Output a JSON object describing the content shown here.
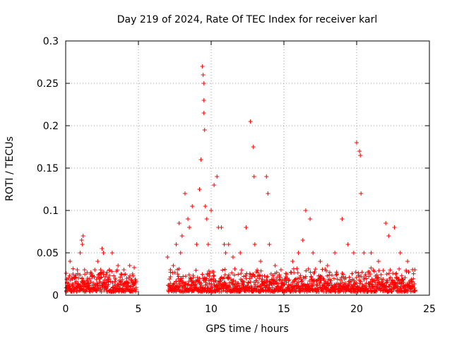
{
  "chart_data": {
    "type": "scatter",
    "title": "Day 219 of 2024, Rate Of TEC Index for receiver karl",
    "xlabel": "GPS time / hours",
    "ylabel": "ROTI / TECUs",
    "xlim": [
      0,
      25
    ],
    "ylim": [
      0,
      0.3
    ],
    "x_ticks": [
      0,
      5,
      10,
      15,
      20,
      25
    ],
    "y_ticks": [
      0,
      0.05,
      0.1,
      0.15,
      0.2,
      0.25,
      0.3
    ],
    "x_tick_labels": [
      "0",
      "5",
      "10",
      "15",
      "20",
      "25"
    ],
    "y_tick_labels": [
      "0",
      "0.05",
      "0.1",
      "0.15",
      "0.2",
      "0.25",
      "0.3"
    ],
    "grid": true,
    "marker": "plus",
    "color": "#ff0000",
    "data_gap_hours": [
      4.85,
      7.0
    ],
    "series": [
      {
        "name": "ROTI",
        "x": [
          0.1,
          0.2,
          0.3,
          0.4,
          0.5,
          0.6,
          0.8,
          1.0,
          1.1,
          1.15,
          1.2,
          1.3,
          1.5,
          1.7,
          2.0,
          2.2,
          2.4,
          2.5,
          2.6,
          2.8,
          3.0,
          3.2,
          3.4,
          3.6,
          3.8,
          4.0,
          4.2,
          4.4,
          4.6,
          4.8,
          7.0,
          7.2,
          7.4,
          7.6,
          7.8,
          7.9,
          8.0,
          8.2,
          8.4,
          8.5,
          8.7,
          9.0,
          9.2,
          9.3,
          9.4,
          9.45,
          9.5,
          9.5,
          9.5,
          9.55,
          9.6,
          9.7,
          9.8,
          10.0,
          10.2,
          10.4,
          10.5,
          10.7,
          10.9,
          11.0,
          11.2,
          11.5,
          12.0,
          12.4,
          12.7,
          12.9,
          12.95,
          13.0,
          13.4,
          13.8,
          13.9,
          14.0,
          14.4,
          14.8,
          15.2,
          15.6,
          16.0,
          16.3,
          16.5,
          16.8,
          17.0,
          17.5,
          18.0,
          18.5,
          19.0,
          19.4,
          19.8,
          20.0,
          20.2,
          20.25,
          20.3,
          20.5,
          21.0,
          21.5,
          22.0,
          22.2,
          22.6,
          23.0,
          23.5,
          24.0
        ],
        "y": [
          0.015,
          0.02,
          0.04,
          0.02,
          0.025,
          0.02,
          0.03,
          0.05,
          0.065,
          0.06,
          0.07,
          0.03,
          0.02,
          0.025,
          0.03,
          0.04,
          0.03,
          0.055,
          0.05,
          0.025,
          0.03,
          0.05,
          0.02,
          0.035,
          0.025,
          0.03,
          0.02,
          0.035,
          0.025,
          0.015,
          0.045,
          0.03,
          0.035,
          0.06,
          0.085,
          0.05,
          0.07,
          0.12,
          0.09,
          0.08,
          0.105,
          0.06,
          0.125,
          0.16,
          0.27,
          0.26,
          0.25,
          0.23,
          0.215,
          0.195,
          0.105,
          0.09,
          0.06,
          0.1,
          0.13,
          0.14,
          0.08,
          0.08,
          0.06,
          0.05,
          0.06,
          0.045,
          0.05,
          0.08,
          0.205,
          0.175,
          0.14,
          0.06,
          0.04,
          0.14,
          0.12,
          0.06,
          0.035,
          0.03,
          0.025,
          0.04,
          0.05,
          0.065,
          0.1,
          0.09,
          0.05,
          0.04,
          0.035,
          0.05,
          0.09,
          0.06,
          0.05,
          0.18,
          0.17,
          0.165,
          0.12,
          0.05,
          0.05,
          0.04,
          0.085,
          0.07,
          0.08,
          0.05,
          0.04,
          0.03
        ]
      }
    ]
  }
}
